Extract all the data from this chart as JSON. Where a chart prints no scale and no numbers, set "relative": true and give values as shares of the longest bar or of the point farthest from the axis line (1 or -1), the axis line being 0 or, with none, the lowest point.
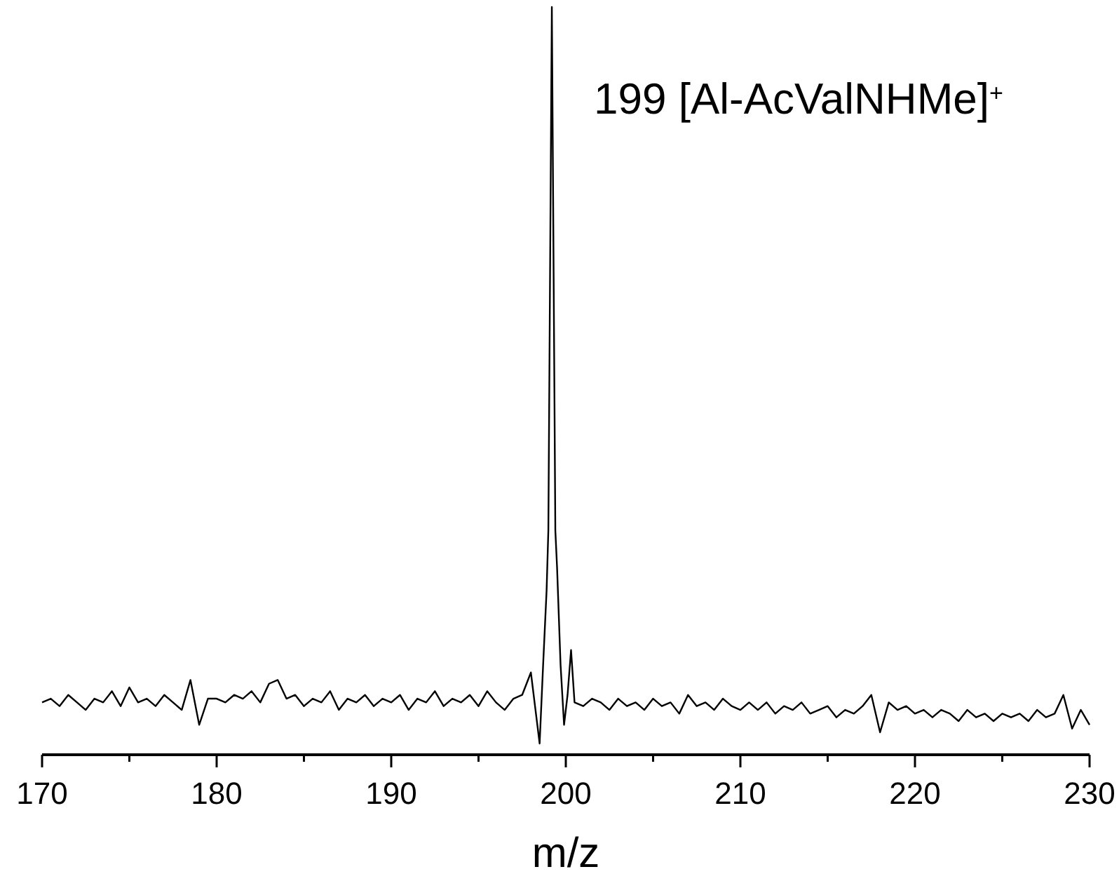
{
  "chart_data": {
    "type": "line",
    "relative": true,
    "xlabel": "m/z",
    "xlim": [
      170,
      230
    ],
    "xticks": [
      170,
      {
        "value": 175,
        "label": null
      },
      180,
      {
        "value": 185,
        "label": null
      },
      190,
      {
        "value": 195,
        "label": null
      },
      200,
      {
        "value": 205,
        "label": null
      },
      210,
      {
        "value": 215,
        "label": null
      },
      220,
      {
        "value": 225,
        "label": null
      },
      230
    ],
    "grid": false,
    "marker": "none",
    "line_style": "solid",
    "annotations": [
      {
        "text": "199 [Al-AcValNHMe]$^{+}$",
        "x": 199.2,
        "y": 1
      }
    ],
    "series": [
      {
        "color": "#000000",
        "x": [
          170,
          170.5,
          171,
          171.5,
          172,
          172.5,
          173,
          173.5,
          174,
          174.5,
          175,
          175.5,
          176,
          176.5,
          177,
          177.5,
          178,
          178.5,
          179,
          179.5,
          180,
          180.5,
          181,
          181.5,
          182,
          182.5,
          183,
          183.5,
          184,
          184.5,
          185,
          185.5,
          186,
          186.5,
          187,
          187.5,
          188,
          188.5,
          189,
          189.5,
          190,
          190.5,
          191,
          191.5,
          192,
          192.5,
          193,
          193.5,
          194,
          194.5,
          195,
          195.5,
          196,
          196.5,
          197,
          197.5,
          198,
          198.5,
          198.7,
          198.9,
          199,
          199.2,
          199.4,
          199.5,
          199.7,
          199.9,
          200.1,
          200.3,
          200.5,
          201,
          201.5,
          202,
          202.5,
          203,
          203.5,
          204,
          204.5,
          205,
          205.5,
          206,
          206.5,
          207,
          207.5,
          208,
          208.5,
          209,
          209.5,
          210,
          210.5,
          211,
          211.5,
          212,
          212.5,
          213,
          213.5,
          214,
          214.5,
          215,
          215.5,
          216,
          216.5,
          217,
          217.5,
          218,
          218.5,
          219,
          219.5,
          220,
          220.5,
          221,
          221.5,
          222,
          222.5,
          223,
          223.5,
          224,
          224.5,
          225,
          225.5,
          226,
          226.5,
          227,
          227.5,
          228,
          228.5,
          229,
          229.5,
          230
        ],
        "values": [
          0.07,
          0.075,
          0.065,
          0.08,
          0.07,
          0.06,
          0.075,
          0.07,
          0.085,
          0.065,
          0.09,
          0.07,
          0.075,
          0.065,
          0.08,
          0.07,
          0.06,
          0.1,
          0.04,
          0.075,
          0.075,
          0.07,
          0.08,
          0.075,
          0.085,
          0.07,
          0.095,
          0.1,
          0.075,
          0.08,
          0.065,
          0.075,
          0.07,
          0.085,
          0.06,
          0.075,
          0.07,
          0.08,
          0.065,
          0.075,
          0.07,
          0.08,
          0.06,
          0.075,
          0.07,
          0.085,
          0.065,
          0.075,
          0.07,
          0.08,
          0.065,
          0.085,
          0.07,
          0.06,
          0.075,
          0.08,
          0.11,
          0.015,
          0.12,
          0.22,
          0.3,
          1,
          0.3,
          0.25,
          0.12,
          0.04,
          0.08,
          0.14,
          0.07,
          0.065,
          0.075,
          0.07,
          0.06,
          0.075,
          0.065,
          0.07,
          0.06,
          0.075,
          0.065,
          0.07,
          0.055,
          0.08,
          0.065,
          0.07,
          0.06,
          0.075,
          0.065,
          0.06,
          0.07,
          0.06,
          0.07,
          0.055,
          0.065,
          0.06,
          0.07,
          0.055,
          0.06,
          0.065,
          0.05,
          0.06,
          0.055,
          0.065,
          0.08,
          0.03,
          0.07,
          0.06,
          0.065,
          0.055,
          0.06,
          0.05,
          0.06,
          0.055,
          0.045,
          0.06,
          0.05,
          0.055,
          0.045,
          0.055,
          0.05,
          0.055,
          0.045,
          0.06,
          0.05,
          0.055,
          0.08,
          0.035,
          0.06,
          0.04
        ]
      }
    ]
  }
}
